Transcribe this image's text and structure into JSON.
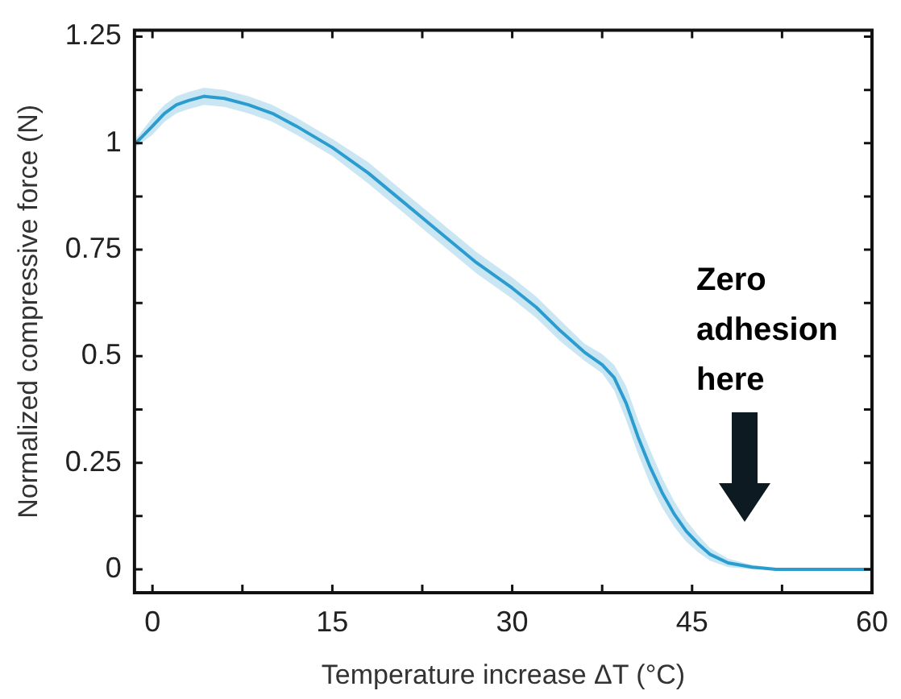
{
  "chart_data": {
    "type": "line",
    "xlabel": "Temperature increase ΔT (°C)",
    "ylabel": "Normalized compressive force (N)",
    "xlim": [
      -1.5,
      60
    ],
    "ylim": [
      -0.055,
      1.265
    ],
    "xticks": [
      0,
      {
        "value": 7.5,
        "label": null
      },
      15,
      {
        "value": 22.5,
        "label": null
      },
      30,
      {
        "value": 37.5,
        "label": null
      },
      45,
      {
        "value": 52.5,
        "label": null
      },
      60
    ],
    "yticks": [
      0,
      {
        "value": 0.125,
        "label": null
      },
      0.25,
      {
        "value": 0.375,
        "label": null
      },
      0.5,
      {
        "value": 0.625,
        "label": null
      },
      0.75,
      {
        "value": 0.875,
        "label": null
      },
      1,
      {
        "value": 1.125,
        "label": null
      },
      1.25
    ],
    "grid": false,
    "legend": false,
    "marker": "none",
    "line_style": "solid",
    "annotations": [
      "Zero adhesion here"
    ],
    "series": [
      {
        "color": "#2b9ccf",
        "x": [
          -1.4,
          0,
          1,
          2,
          3,
          4.3,
          6,
          8,
          10,
          12,
          15,
          18,
          21,
          24,
          27,
          30,
          32,
          34,
          36,
          37.5,
          38.5,
          39.5,
          40.5,
          41.5,
          42.5,
          43.5,
          44.5,
          45.5,
          46.5,
          48,
          50,
          52,
          60
        ],
        "values": [
          1.0,
          1.04,
          1.07,
          1.09,
          1.1,
          1.11,
          1.105,
          1.09,
          1.07,
          1.04,
          0.99,
          0.93,
          0.86,
          0.79,
          0.72,
          0.66,
          0.615,
          0.56,
          0.51,
          0.48,
          0.45,
          0.39,
          0.31,
          0.24,
          0.18,
          0.13,
          0.09,
          0.06,
          0.035,
          0.015,
          0.005,
          0,
          0
        ],
        "lower": [
          0.99,
          1.02,
          1.05,
          1.07,
          1.08,
          1.09,
          1.085,
          1.07,
          1.05,
          1.02,
          0.97,
          0.905,
          0.835,
          0.765,
          0.695,
          0.635,
          0.59,
          0.535,
          0.49,
          0.46,
          0.42,
          0.35,
          0.27,
          0.2,
          0.145,
          0.1,
          0.065,
          0.04,
          0.02,
          0.005,
          0,
          0,
          0
        ],
        "upper": [
          1.01,
          1.06,
          1.09,
          1.11,
          1.12,
          1.13,
          1.125,
          1.11,
          1.09,
          1.06,
          1.01,
          0.955,
          0.885,
          0.815,
          0.745,
          0.685,
          0.64,
          0.585,
          0.53,
          0.505,
          0.48,
          0.43,
          0.35,
          0.28,
          0.215,
          0.16,
          0.115,
          0.08,
          0.05,
          0.025,
          0.01,
          0.003,
          0.003
        ]
      }
    ]
  }
}
